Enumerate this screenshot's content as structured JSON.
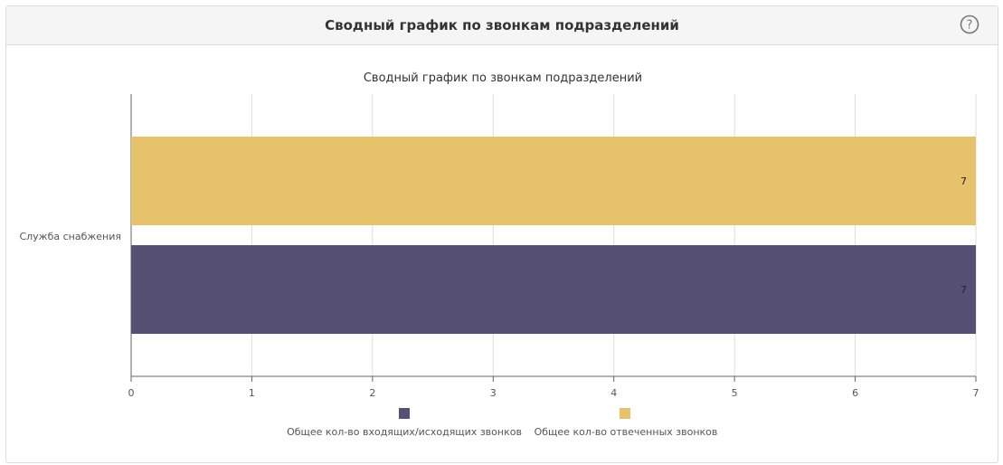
{
  "panel": {
    "title": "Сводный график по звонкам подразделений",
    "help_icon": "question-circle-icon"
  },
  "chart_data": {
    "type": "bar",
    "orientation": "horizontal",
    "title": "Сводный график по звонкам подразделений",
    "categories": [
      "Служба снабжения"
    ],
    "series": [
      {
        "name": "Общее кол-во входящих/исходящих звонков",
        "values": [
          7
        ],
        "color": "#575075"
      },
      {
        "name": "Общее кол-во отвеченных звонков",
        "values": [
          7
        ],
        "color": "#e6c36a"
      }
    ],
    "xlim": [
      0,
      7
    ],
    "xticks": [
      "0",
      "1",
      "2",
      "3",
      "4",
      "5",
      "6",
      "7"
    ],
    "data_labels": [
      "7",
      "7"
    ],
    "grid": true,
    "legend_position": "bottom"
  }
}
